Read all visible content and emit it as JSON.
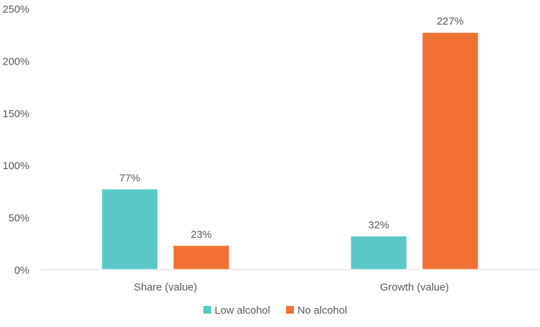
{
  "chart_data": {
    "type": "bar",
    "categories": [
      "Share (value)",
      "Growth (value)"
    ],
    "series": [
      {
        "name": "Low alcohol",
        "values": [
          77,
          32
        ],
        "labels": [
          "77%",
          "32%"
        ],
        "color": "#5BC8C8"
      },
      {
        "name": "No alcohol",
        "values": [
          23,
          227
        ],
        "labels": [
          "23%",
          "227%"
        ],
        "color": "#F07133"
      }
    ],
    "y_ticks": [
      "0%",
      "50%",
      "100%",
      "150%",
      "200%",
      "250%"
    ],
    "ylim": [
      0,
      250
    ],
    "yunit": "%",
    "grid": false,
    "legend": "bottom",
    "title": "",
    "xlabel": "",
    "ylabel": ""
  }
}
